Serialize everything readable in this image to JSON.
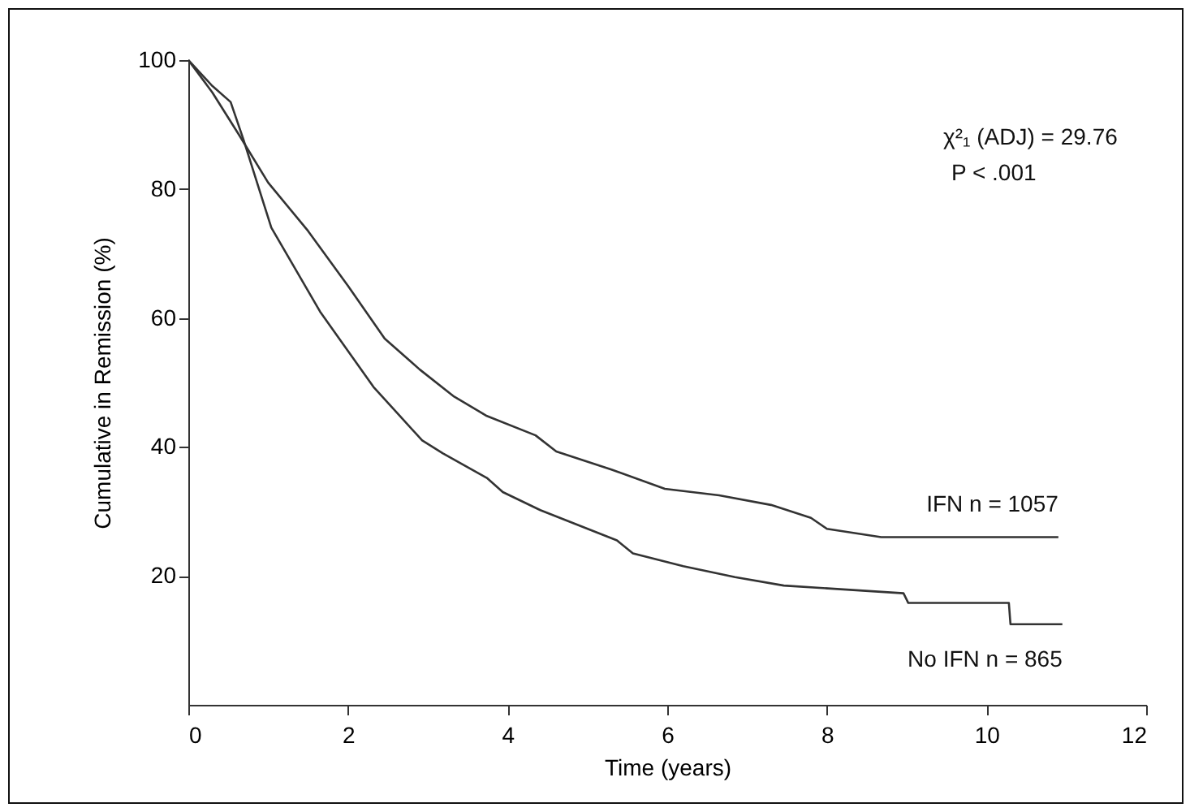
{
  "chart_data": {
    "type": "line",
    "xlabel": "Time (years)",
    "ylabel": "Cumulative in Remission (%)",
    "xlim": [
      0,
      12
    ],
    "xticks": [
      0,
      2,
      4,
      6,
      8,
      10,
      12
    ],
    "ylim": [
      0,
      100
    ],
    "yticks": [
      20,
      40,
      60,
      80,
      100
    ],
    "grid": false,
    "marker": "none",
    "line_style": "solid",
    "annotations": [
      "χ²₁ (ADJ) = 29.76",
      "P < .001"
    ],
    "series": [
      {
        "name": "IFN  n = 1057",
        "color": "#333333",
        "x": [
          0,
          0.3,
          0.63,
          1.0,
          1.5,
          2.0,
          2.46,
          2.9,
          3.33,
          3.74,
          4.35,
          4.61,
          5.3,
          5.97,
          6.65,
          7.3,
          7.8,
          8.0,
          8.68,
          10.9
        ],
        "values": [
          100,
          95,
          88.5,
          81,
          73.5,
          65,
          56.8,
          52,
          47.8,
          44.8,
          41.8,
          39.3,
          36.5,
          33.5,
          32.5,
          31,
          29,
          27.3,
          26,
          26
        ]
      },
      {
        "name": "No IFN  n = 865",
        "color": "#333333",
        "x": [
          0,
          0.3,
          0.53,
          0.69,
          1.04,
          1.65,
          2.32,
          2.93,
          3.19,
          3.74,
          3.94,
          4.41,
          5.37,
          5.57,
          6.2,
          6.85,
          7.46,
          8.96,
          9.02,
          10.28,
          10.3,
          10.95
        ],
        "values": [
          100,
          96,
          93.5,
          87.7,
          74,
          61,
          49.3,
          41,
          39,
          35.2,
          33,
          30.2,
          25.5,
          23.5,
          21.5,
          19.8,
          18.5,
          17.3,
          15.8,
          15.8,
          12.5,
          12.5
        ]
      }
    ]
  }
}
